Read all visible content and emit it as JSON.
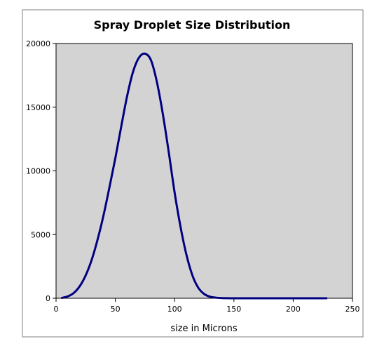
{
  "colors": {
    "background": "#ffffff",
    "plot_area": "#d3d3d3",
    "line": "#000080",
    "frame": "#808080",
    "axis": "#000000"
  },
  "chart_data": {
    "type": "line",
    "title": "Spray Droplet Size Distribution",
    "xlabel": "size in Microns",
    "ylabel": "",
    "xlim": [
      0,
      250
    ],
    "ylim": [
      0,
      20000
    ],
    "x_ticks": [
      0,
      50,
      100,
      150,
      200,
      250
    ],
    "y_ticks": [
      0,
      5000,
      10000,
      15000,
      20000
    ],
    "grid": false,
    "legend": "none",
    "series": [
      {
        "color": "#000080",
        "x": [
          5,
          10,
          15,
          20,
          25,
          30,
          35,
          40,
          45,
          50,
          55,
          60,
          65,
          70,
          75,
          80,
          85,
          90,
          95,
          100,
          105,
          110,
          115,
          120,
          125,
          130,
          135,
          140,
          145,
          150,
          160,
          170,
          180,
          190,
          200,
          210,
          220,
          228
        ],
        "y": [
          30,
          150,
          420,
          950,
          1800,
          3000,
          4600,
          6500,
          8700,
          11000,
          13500,
          15900,
          17800,
          18900,
          19200,
          18700,
          17000,
          14500,
          11500,
          8300,
          5600,
          3400,
          1800,
          820,
          330,
          120,
          45,
          15,
          5,
          2,
          0,
          0,
          0,
          0,
          0,
          0,
          0,
          0
        ]
      }
    ]
  }
}
